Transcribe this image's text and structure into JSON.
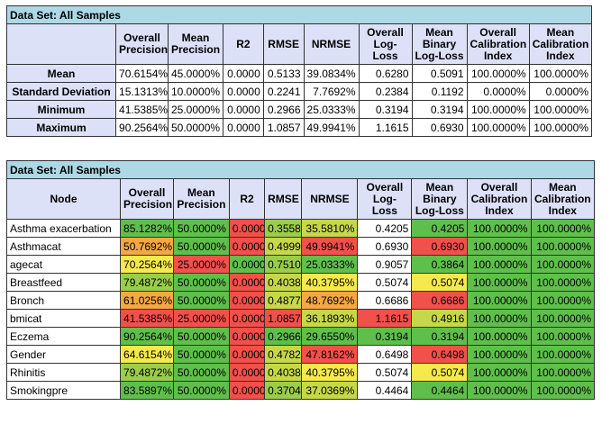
{
  "summary": {
    "caption": "Data Set: All Samples",
    "headers": [
      "Overall Precision",
      "Mean Precision",
      "R2",
      "RMSE",
      "NRMSE",
      "Overall Log-Loss",
      "Mean Binary Log-Loss",
      "Overall Calibration Index",
      "Mean Calibration Index"
    ],
    "rows": [
      {
        "label": "Mean",
        "values": [
          "70.6154%",
          "45.0000%",
          "0.0000",
          "0.5133",
          "39.0834%",
          "0.6280",
          "0.5091",
          "100.0000%",
          "100.0000%"
        ]
      },
      {
        "label": "Standard Deviation",
        "values": [
          "15.1313%",
          "10.0000%",
          "0.0000",
          "0.2241",
          "7.7692%",
          "0.2384",
          "0.1192",
          "0.0000%",
          "0.0000%"
        ]
      },
      {
        "label": "Minimum",
        "values": [
          "41.5385%",
          "25.0000%",
          "0.0000",
          "0.2966",
          "25.0333%",
          "0.3194",
          "0.3194",
          "100.0000%",
          "100.0000%"
        ]
      },
      {
        "label": "Maximum",
        "values": [
          "90.2564%",
          "50.0000%",
          "0.0000",
          "1.0857",
          "49.9941%",
          "1.1615",
          "0.6930",
          "100.0000%",
          "100.0000%"
        ]
      }
    ]
  },
  "detail": {
    "caption": "Data Set: All Samples",
    "node_header": "Node",
    "headers": [
      "Overall Precision",
      "Mean Precision",
      "R2",
      "RMSE",
      "NRMSE",
      "Overall Log-Loss",
      "Mean Binary Log-Loss",
      "Overall Calibration Index",
      "Mean Calibration Index"
    ],
    "colors": {
      "green": "#5fbf4b",
      "lightgreen": "#9acd4a",
      "yellowgreen": "#c5d84a",
      "yellow": "#f5e94e",
      "orange": "#f5a742",
      "red": "#f2504b",
      "white": "#ffffff"
    },
    "rows": [
      {
        "node": "Asthma exacerbation",
        "values": [
          "85.1282%",
          "50.0000%",
          "0.0000",
          "0.3558",
          "35.5810%",
          "0.4205",
          "0.4205",
          "100.0000%",
          "100.0000%"
        ],
        "colors": [
          "green",
          "green",
          "red",
          "lightgreen",
          "yellowgreen",
          "white",
          "green",
          "green",
          "green"
        ]
      },
      {
        "node": "Asthmacat",
        "values": [
          "50.7692%",
          "50.0000%",
          "0.0000",
          "0.4999",
          "49.9941%",
          "0.6930",
          "0.6930",
          "100.0000%",
          "100.0000%"
        ],
        "colors": [
          "orange",
          "green",
          "red",
          "yellowgreen",
          "red",
          "white",
          "red",
          "green",
          "green"
        ]
      },
      {
        "node": "agecat",
        "values": [
          "70.2564%",
          "25.0000%",
          "0.0000",
          "0.7510",
          "25.0333%",
          "0.9057",
          "0.3864",
          "100.0000%",
          "100.0000%"
        ],
        "colors": [
          "yellow",
          "red",
          "green",
          "lightgreen",
          "green",
          "white",
          "green",
          "green",
          "green"
        ]
      },
      {
        "node": "Breastfeed",
        "values": [
          "79.4872%",
          "50.0000%",
          "0.0000",
          "0.4038",
          "40.3795%",
          "0.5074",
          "0.5074",
          "100.0000%",
          "100.0000%"
        ],
        "colors": [
          "lightgreen",
          "green",
          "red",
          "yellowgreen",
          "yellow",
          "white",
          "yellow",
          "green",
          "green"
        ]
      },
      {
        "node": "Bronch",
        "values": [
          "61.0256%",
          "50.0000%",
          "0.0000",
          "0.4877",
          "48.7692%",
          "0.6686",
          "0.6686",
          "100.0000%",
          "100.0000%"
        ],
        "colors": [
          "orange",
          "green",
          "red",
          "yellowgreen",
          "orange",
          "white",
          "red",
          "green",
          "green"
        ]
      },
      {
        "node": "bmicat",
        "values": [
          "41.5385%",
          "25.0000%",
          "0.0000",
          "1.0857",
          "36.1893%",
          "1.1615",
          "0.4916",
          "100.0000%",
          "100.0000%"
        ],
        "colors": [
          "red",
          "red",
          "red",
          "red",
          "yellowgreen",
          "red",
          "yellowgreen",
          "green",
          "green"
        ]
      },
      {
        "node": "Eczema",
        "values": [
          "90.2564%",
          "50.0000%",
          "0.0000",
          "0.2966",
          "29.6550%",
          "0.3194",
          "0.3194",
          "100.0000%",
          "100.0000%"
        ],
        "colors": [
          "green",
          "green",
          "red",
          "green",
          "green",
          "green",
          "green",
          "green",
          "green"
        ]
      },
      {
        "node": "Gender",
        "values": [
          "64.6154%",
          "50.0000%",
          "0.0000",
          "0.4782",
          "47.8162%",
          "0.6498",
          "0.6498",
          "100.0000%",
          "100.0000%"
        ],
        "colors": [
          "yellow",
          "green",
          "red",
          "yellowgreen",
          "red",
          "white",
          "red",
          "green",
          "green"
        ]
      },
      {
        "node": "Rhinitis",
        "values": [
          "79.4872%",
          "50.0000%",
          "0.0000",
          "0.4038",
          "40.3795%",
          "0.5074",
          "0.5074",
          "100.0000%",
          "100.0000%"
        ],
        "colors": [
          "lightgreen",
          "green",
          "red",
          "yellowgreen",
          "yellow",
          "white",
          "yellow",
          "green",
          "green"
        ]
      },
      {
        "node": "Smokingpre",
        "values": [
          "83.5897%",
          "50.0000%",
          "0.0000",
          "0.3704",
          "37.0369%",
          "0.4464",
          "0.4464",
          "100.0000%",
          "100.0000%"
        ],
        "colors": [
          "green",
          "green",
          "red",
          "lightgreen",
          "yellowgreen",
          "white",
          "green",
          "green",
          "green"
        ]
      }
    ]
  }
}
